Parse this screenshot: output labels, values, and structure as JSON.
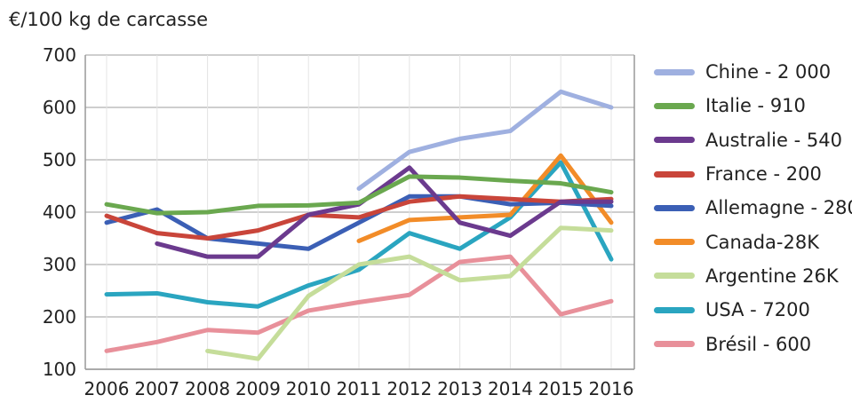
{
  "chart_data": {
    "type": "line",
    "ylabel": "€/100 kg de carcasse",
    "ylim": [
      100,
      700
    ],
    "yticks": [
      100,
      200,
      300,
      400,
      500,
      600,
      700
    ],
    "x": [
      "2006",
      "2007",
      "2008",
      "2009",
      "2010",
      "2011",
      "2012",
      "2013",
      "2014",
      "2015",
      "2016"
    ],
    "grid": true,
    "legend_position": "right",
    "series": [
      {
        "name": "Chine - 2 000",
        "color": "#9fb0e0",
        "values": [
          null,
          null,
          null,
          null,
          null,
          445,
          515,
          540,
          555,
          630,
          600
        ]
      },
      {
        "name": "Italie - 910",
        "color": "#6aa84f",
        "values": [
          415,
          398,
          400,
          412,
          413,
          418,
          468,
          466,
          460,
          455,
          438
        ]
      },
      {
        "name": "Australie - 540",
        "color": "#6b3a8e",
        "values": [
          null,
          340,
          315,
          315,
          395,
          415,
          485,
          380,
          355,
          420,
          420
        ]
      },
      {
        "name": "France - 200",
        "color": "#c9453a",
        "values": [
          393,
          360,
          350,
          365,
          395,
          390,
          420,
          430,
          425,
          420,
          425
        ]
      },
      {
        "name": "Allemagne - 280",
        "color": "#3b5fb5",
        "values": [
          380,
          405,
          350,
          340,
          330,
          380,
          430,
          430,
          415,
          418,
          412
        ]
      },
      {
        "name": "Canada-28K",
        "color": "#f28c28",
        "values": [
          null,
          null,
          null,
          null,
          null,
          345,
          385,
          390,
          395,
          508,
          380
        ]
      },
      {
        "name": "Argentine 26K",
        "color": "#c5dd9a",
        "values": [
          null,
          null,
          135,
          120,
          240,
          300,
          315,
          270,
          278,
          370,
          365
        ]
      },
      {
        "name": "USA - 7200",
        "color": "#2aa5c0",
        "values": [
          243,
          245,
          228,
          220,
          260,
          290,
          360,
          330,
          390,
          495,
          310
        ]
      },
      {
        "name": "Brésil - 600",
        "color": "#e8909a",
        "values": [
          135,
          152,
          175,
          170,
          212,
          228,
          242,
          305,
          315,
          205,
          230
        ]
      }
    ]
  }
}
